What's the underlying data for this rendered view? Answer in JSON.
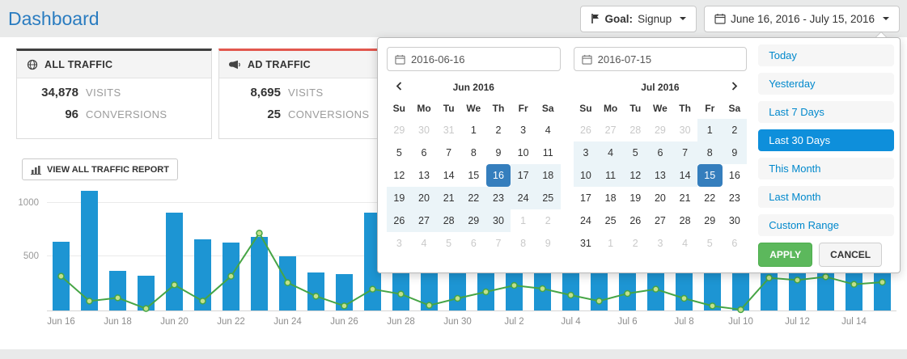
{
  "page": {
    "title": "Dashboard"
  },
  "header": {
    "goal_label": "Goal:",
    "goal_value": "Signup",
    "daterange_value": "June 16, 2016 - July 15, 2016"
  },
  "cards": [
    {
      "title": "ALL TRAFFIC",
      "icon": "globe-icon",
      "stats": [
        {
          "value": "34,878",
          "label": "VISITS"
        },
        {
          "value": "96",
          "label": "CONVERSIONS"
        }
      ]
    },
    {
      "title": "AD TRAFFIC",
      "icon": "megaphone-icon",
      "stats": [
        {
          "value": "8,695",
          "label": "VISITS"
        },
        {
          "value": "25",
          "label": "CONVERSIONS"
        }
      ]
    }
  ],
  "toolbar": {
    "view_report_label": "VIEW ALL TRAFFIC REPORT",
    "icon": "bar-chart-icon"
  },
  "chart_data": {
    "type": "bar",
    "categories": [
      "Jun 16",
      "Jun 17",
      "Jun 18",
      "Jun 19",
      "Jun 20",
      "Jun 21",
      "Jun 22",
      "Jun 23",
      "Jun 24",
      "Jun 25",
      "Jun 26",
      "Jun 27",
      "Jun 28",
      "Jun 29",
      "Jun 30",
      "Jul 1",
      "Jul 2",
      "Jul 3",
      "Jul 4",
      "Jul 5",
      "Jul 6",
      "Jul 7",
      "Jul 8",
      "Jul 9",
      "Jul 10",
      "Jul 11",
      "Jul 12",
      "Jul 13",
      "Jul 14",
      "Jul 15"
    ],
    "series": [
      {
        "name": "Visits",
        "type": "bar",
        "values": [
          640,
          1110,
          370,
          325,
          905,
          660,
          630,
          680,
          505,
          350,
          335,
          910,
          720,
          680,
          650,
          600,
          680,
          720,
          640,
          600,
          680,
          720,
          660,
          620,
          680,
          720,
          670,
          640,
          690,
          560
        ]
      },
      {
        "name": "Conversions",
        "type": "line",
        "values": [
          325,
          95,
          125,
          25,
          245,
          95,
          325,
          725,
          265,
          140,
          50,
          205,
          160,
          55,
          120,
          180,
          240,
          210,
          150,
          95,
          165,
          205,
          120,
          50,
          15,
          310,
          290,
          320,
          250,
          270
        ]
      }
    ],
    "title": "",
    "xlabel": "",
    "ylabel": "",
    "ylim": [
      0,
      1200
    ],
    "yticks": [
      500,
      1000
    ],
    "xtick_every": 2,
    "grid": true,
    "legend": "none"
  },
  "colors": {
    "title_blue": "#2a7cc0",
    "card1_accent": "#404040",
    "card2_accent": "#e2574e",
    "bar": "#1d95d3",
    "line": "#46a546",
    "point_fill": "#c3e08c",
    "in_range": "#ebf4f8",
    "active_day": "#357ebd",
    "range_link": "#0088cc",
    "range_active_bg": "#0e8fdb",
    "apply_green": "#5cb85c"
  },
  "datepicker": {
    "start_input": "2016-06-16",
    "end_input": "2016-07-15",
    "weekdays": [
      "Su",
      "Mo",
      "Tu",
      "We",
      "Th",
      "Fr",
      "Sa"
    ],
    "calendars": [
      {
        "month": "Jun 2016",
        "cells": [
          {
            "d": 29,
            "s": "off"
          },
          {
            "d": 30,
            "s": "off"
          },
          {
            "d": 31,
            "s": "off"
          },
          {
            "d": 1,
            "s": ""
          },
          {
            "d": 2,
            "s": ""
          },
          {
            "d": 3,
            "s": ""
          },
          {
            "d": 4,
            "s": ""
          },
          {
            "d": 5,
            "s": ""
          },
          {
            "d": 6,
            "s": ""
          },
          {
            "d": 7,
            "s": ""
          },
          {
            "d": 8,
            "s": ""
          },
          {
            "d": 9,
            "s": ""
          },
          {
            "d": 10,
            "s": ""
          },
          {
            "d": 11,
            "s": ""
          },
          {
            "d": 12,
            "s": ""
          },
          {
            "d": 13,
            "s": ""
          },
          {
            "d": 14,
            "s": ""
          },
          {
            "d": 15,
            "s": ""
          },
          {
            "d": 16,
            "s": "active"
          },
          {
            "d": 17,
            "s": "range"
          },
          {
            "d": 18,
            "s": "range"
          },
          {
            "d": 19,
            "s": "range"
          },
          {
            "d": 20,
            "s": "range"
          },
          {
            "d": 21,
            "s": "range"
          },
          {
            "d": 22,
            "s": "range"
          },
          {
            "d": 23,
            "s": "range"
          },
          {
            "d": 24,
            "s": "range"
          },
          {
            "d": 25,
            "s": "range"
          },
          {
            "d": 26,
            "s": "range"
          },
          {
            "d": 27,
            "s": "range"
          },
          {
            "d": 28,
            "s": "range"
          },
          {
            "d": 29,
            "s": "range"
          },
          {
            "d": 30,
            "s": "range"
          },
          {
            "d": 1,
            "s": "off"
          },
          {
            "d": 2,
            "s": "off"
          },
          {
            "d": 3,
            "s": "off"
          },
          {
            "d": 4,
            "s": "off"
          },
          {
            "d": 5,
            "s": "off"
          },
          {
            "d": 6,
            "s": "off"
          },
          {
            "d": 7,
            "s": "off"
          },
          {
            "d": 8,
            "s": "off"
          },
          {
            "d": 9,
            "s": "off"
          }
        ]
      },
      {
        "month": "Jul 2016",
        "cells": [
          {
            "d": 26,
            "s": "off"
          },
          {
            "d": 27,
            "s": "off"
          },
          {
            "d": 28,
            "s": "off"
          },
          {
            "d": 29,
            "s": "off"
          },
          {
            "d": 30,
            "s": "off"
          },
          {
            "d": 1,
            "s": "range"
          },
          {
            "d": 2,
            "s": "range"
          },
          {
            "d": 3,
            "s": "range"
          },
          {
            "d": 4,
            "s": "range"
          },
          {
            "d": 5,
            "s": "range"
          },
          {
            "d": 6,
            "s": "range"
          },
          {
            "d": 7,
            "s": "range"
          },
          {
            "d": 8,
            "s": "range"
          },
          {
            "d": 9,
            "s": "range"
          },
          {
            "d": 10,
            "s": "range"
          },
          {
            "d": 11,
            "s": "range"
          },
          {
            "d": 12,
            "s": "range"
          },
          {
            "d": 13,
            "s": "range"
          },
          {
            "d": 14,
            "s": "range"
          },
          {
            "d": 15,
            "s": "active"
          },
          {
            "d": 16,
            "s": ""
          },
          {
            "d": 17,
            "s": ""
          },
          {
            "d": 18,
            "s": ""
          },
          {
            "d": 19,
            "s": ""
          },
          {
            "d": 20,
            "s": ""
          },
          {
            "d": 21,
            "s": ""
          },
          {
            "d": 22,
            "s": ""
          },
          {
            "d": 23,
            "s": ""
          },
          {
            "d": 24,
            "s": ""
          },
          {
            "d": 25,
            "s": ""
          },
          {
            "d": 26,
            "s": ""
          },
          {
            "d": 27,
            "s": ""
          },
          {
            "d": 28,
            "s": ""
          },
          {
            "d": 29,
            "s": ""
          },
          {
            "d": 30,
            "s": ""
          },
          {
            "d": 31,
            "s": ""
          },
          {
            "d": 1,
            "s": "off"
          },
          {
            "d": 2,
            "s": "off"
          },
          {
            "d": 3,
            "s": "off"
          },
          {
            "d": 4,
            "s": "off"
          },
          {
            "d": 5,
            "s": "off"
          },
          {
            "d": 6,
            "s": "off"
          }
        ]
      }
    ],
    "ranges": [
      "Today",
      "Yesterday",
      "Last 7 Days",
      "Last 30 Days",
      "This Month",
      "Last Month",
      "Custom Range"
    ],
    "active_range": "Last 30 Days",
    "apply_label": "APPLY",
    "cancel_label": "CANCEL"
  }
}
